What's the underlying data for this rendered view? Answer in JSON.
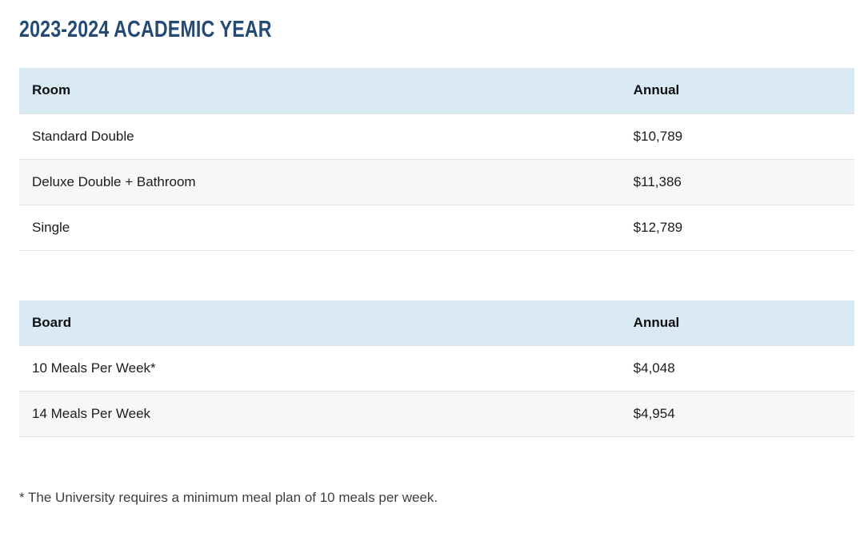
{
  "page": {
    "title": "2023-2024 ACADEMIC YEAR",
    "footnote": "* The University requires a minimum meal plan of 10 meals per week."
  },
  "tables": [
    {
      "name": "room-rates",
      "columns": [
        "Room",
        "Annual"
      ],
      "rows": [
        [
          "Standard Double",
          "$10,789"
        ],
        [
          "Deluxe Double + Bathroom",
          "$11,386"
        ],
        [
          "Single",
          "$12,789"
        ]
      ]
    },
    {
      "name": "board-rates",
      "columns": [
        "Board",
        "Annual"
      ],
      "rows": [
        [
          "10 Meals Per Week*",
          "$4,048"
        ],
        [
          "14 Meals Per Week",
          "$4,954"
        ]
      ]
    }
  ],
  "colors": {
    "heading_text": "#254a73",
    "table_header_bg": "#d9eaf5",
    "row_stripe_bg": "#f7f7f8",
    "row_border": "#dfe0e2",
    "body_text": "#1c1c1e",
    "footnote_text": "#3e3e41"
  }
}
